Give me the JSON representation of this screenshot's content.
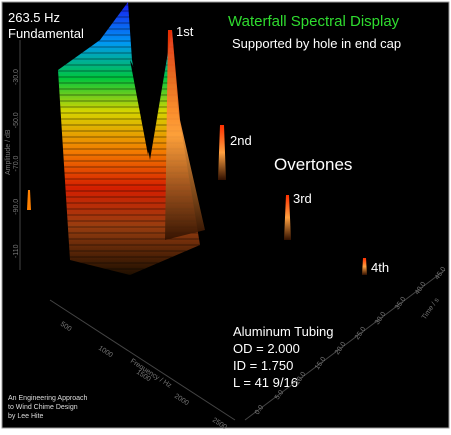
{
  "header": {
    "frequency": "263.5 Hz",
    "label": "Fundamental"
  },
  "title": "Waterfall Spectral Display",
  "subtitle": "Supported by hole in end cap",
  "peaks": [
    "1st",
    "2nd",
    "3rd",
    "4th"
  ],
  "overtones_label": "Overtones",
  "specs": [
    "Aluminum Tubing",
    "OD = 2.000",
    "ID = 1.750",
    "L = 41 9/16"
  ],
  "credit": [
    "An Engineering Approach",
    "to Wind Chime Design",
    "by Lee Hite"
  ],
  "axes": {
    "amplitude": {
      "label": "Amplitude / dB",
      "ticks": [
        "-30.0",
        "-50.0",
        "-70.0",
        "-90.0",
        "-110"
      ]
    },
    "frequency": {
      "label": "Frequency / Hz",
      "ticks": [
        "500",
        "1000",
        "1500",
        "2000",
        "2500"
      ]
    },
    "time": {
      "label": "Time / s",
      "ticks": [
        "0.0",
        "5.0",
        "10.0",
        "15.0",
        "20.0",
        "25.0",
        "30.0",
        "35.0",
        "40.0",
        "45.0"
      ]
    }
  }
}
